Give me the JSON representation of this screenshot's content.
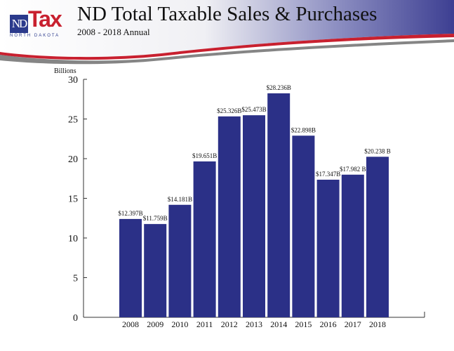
{
  "header": {
    "logo_nd": "ND",
    "logo_tax": "Tax",
    "logo_sub": "NORTH DAKOTA",
    "title": "ND Total Taxable Sales & Purchases",
    "subtitle": "2008 - 2018 Annual"
  },
  "colors": {
    "bar": "#2b3087",
    "banner_blue": "#4a4c9a",
    "banner_red": "#c8202f"
  },
  "chart_data": {
    "type": "bar",
    "title": "ND Total Taxable Sales & Purchases",
    "ylabel": "Billions",
    "xlabel": "",
    "ylim": [
      0,
      30
    ],
    "yticks": [
      "0",
      "5",
      "10",
      "15",
      "20",
      "25",
      "30"
    ],
    "categories": [
      "2008",
      "2009",
      "2010",
      "2011",
      "2012",
      "2013",
      "2014",
      "2015",
      "2016",
      "2017",
      "2018"
    ],
    "values": [
      12.397,
      11.759,
      14.181,
      19.651,
      25.326,
      25.473,
      28.236,
      22.898,
      17.347,
      17.982,
      20.238
    ],
    "labels": [
      "$12.397B",
      "$11.759B",
      "$14.181B",
      "$19.651B",
      "$25.326B",
      "$25.473B",
      "$28.236B",
      "$22.898B",
      "$17.347B",
      "$17.982 B",
      "$20.238 B"
    ],
    "grid": false
  }
}
